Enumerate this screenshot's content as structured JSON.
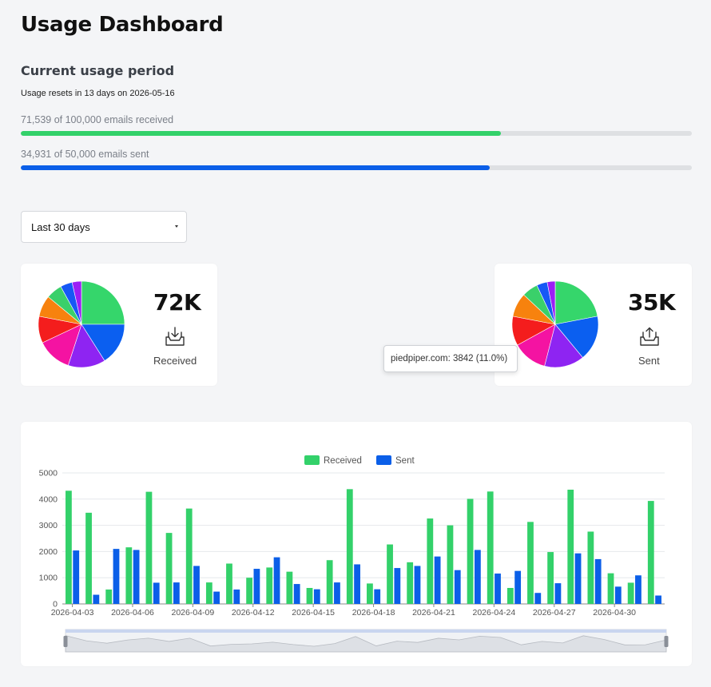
{
  "page": {
    "title": "Usage Dashboard"
  },
  "usage": {
    "section_title": "Current usage period",
    "reset_text": "Usage resets in 13 days on 2026-05-16",
    "received": {
      "label": "71,539 of 100,000 emails received",
      "used": 71539,
      "limit": 100000,
      "fraction": 0.7154,
      "color": "#33d16a"
    },
    "sent": {
      "label": "34,931 of 50,000 emails sent",
      "used": 34931,
      "limit": 50000,
      "fraction": 0.6986,
      "color": "#0b5fe8"
    }
  },
  "filter": {
    "selected": "Last 30 days"
  },
  "received_card": {
    "value": "72K",
    "label": "Received",
    "icon": "inbox-download-icon"
  },
  "sent_card": {
    "value": "35K",
    "label": "Sent",
    "icon": "inbox-upload-icon"
  },
  "tooltip": {
    "text": "piedpiper.com: 3842 (11.0%)"
  },
  "pies": {
    "received": [
      {
        "color": "#35d66b",
        "value": 25
      },
      {
        "color": "#0b5ff0",
        "value": 16
      },
      {
        "color": "#8e24f2",
        "value": 14
      },
      {
        "color": "#f413a2",
        "value": 13
      },
      {
        "color": "#f41d1d",
        "value": 10
      },
      {
        "color": "#f7820e",
        "value": 8
      },
      {
        "color": "#3ad06a",
        "value": 6
      },
      {
        "color": "#1658f5",
        "value": 4.5
      },
      {
        "color": "#9b1ef5",
        "value": 3.5
      }
    ],
    "sent": [
      {
        "color": "#35d66b",
        "value": 22
      },
      {
        "color": "#0b5ff0",
        "value": 17
      },
      {
        "color": "#8e24f2",
        "value": 15
      },
      {
        "color": "#f413a2",
        "value": 13
      },
      {
        "color": "#f41d1d",
        "value": 11
      },
      {
        "color": "#f7820e",
        "value": 9
      },
      {
        "color": "#3ad06a",
        "value": 6
      },
      {
        "color": "#1658f5",
        "value": 4
      },
      {
        "color": "#9b1ef5",
        "value": 3
      }
    ]
  },
  "chart_data": {
    "type": "bar",
    "legend_position": "top-center",
    "ylim": [
      0,
      5000
    ],
    "yticks": [
      0,
      1000,
      2000,
      3000,
      4000,
      5000
    ],
    "grid": true,
    "categories": [
      "2026-04-03",
      "2026-04-04",
      "2026-04-05",
      "2026-04-06",
      "2026-04-07",
      "2026-04-08",
      "2026-04-09",
      "2026-04-10",
      "2026-04-11",
      "2026-04-12",
      "2026-04-13",
      "2026-04-14",
      "2026-04-15",
      "2026-04-16",
      "2026-04-17",
      "2026-04-18",
      "2026-04-19",
      "2026-04-20",
      "2026-04-21",
      "2026-04-22",
      "2026-04-23",
      "2026-04-24",
      "2026-04-25",
      "2026-04-26",
      "2026-04-27",
      "2026-04-28",
      "2026-04-29",
      "2026-04-30",
      "2026-05-01",
      "2026-05-02"
    ],
    "xtick_labels": [
      "2026-04-03",
      "2026-04-06",
      "2026-04-09",
      "2026-04-12",
      "2026-04-15",
      "2026-04-18",
      "2026-04-21",
      "2026-04-24",
      "2026-04-27",
      "2026-04-30"
    ],
    "series": [
      {
        "name": "Received",
        "color": "#33d16a",
        "values": [
          4320,
          3480,
          550,
          2160,
          4280,
          2710,
          3640,
          820,
          1540,
          1000,
          1390,
          1230,
          610,
          1670,
          4380,
          780,
          2270,
          1590,
          3260,
          3000,
          4010,
          4290,
          610,
          3130,
          1980,
          4360,
          2760,
          1170,
          810,
          3930
        ]
      },
      {
        "name": "Sent",
        "color": "#0b5fe8",
        "values": [
          2040,
          350,
          2100,
          2060,
          810,
          820,
          1450,
          470,
          550,
          1340,
          1780,
          760,
          560,
          820,
          1510,
          560,
          1370,
          1450,
          1810,
          1290,
          2060,
          1160,
          1260,
          420,
          790,
          1930,
          1710,
          660,
          1090,
          320
        ]
      }
    ]
  }
}
